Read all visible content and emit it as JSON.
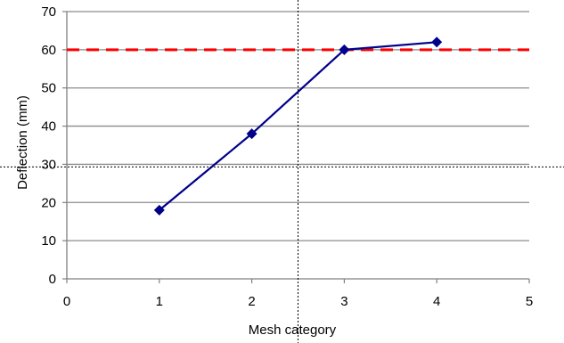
{
  "chart_data": {
    "type": "line",
    "title": "",
    "xlabel": "Mesh category",
    "ylabel": "Deflection  (mm)",
    "xlim": [
      0,
      5
    ],
    "ylim": [
      0,
      70
    ],
    "x_ticks": [
      0,
      1,
      2,
      3,
      4,
      5
    ],
    "y_ticks": [
      0,
      10,
      20,
      30,
      40,
      50,
      60,
      70
    ],
    "grid": "horizontal",
    "legend": "none",
    "series": [
      {
        "x": [
          1,
          2,
          3,
          4
        ],
        "y": [
          18,
          38,
          60,
          62
        ],
        "marker": "diamond",
        "color": "#00008b"
      }
    ],
    "reference_line": {
      "y": 60,
      "style": "dashed",
      "color": "#ff0000"
    },
    "crosshair": {
      "x": 2.5,
      "y": 29.3,
      "style": "dotted",
      "color": "#000000"
    }
  }
}
